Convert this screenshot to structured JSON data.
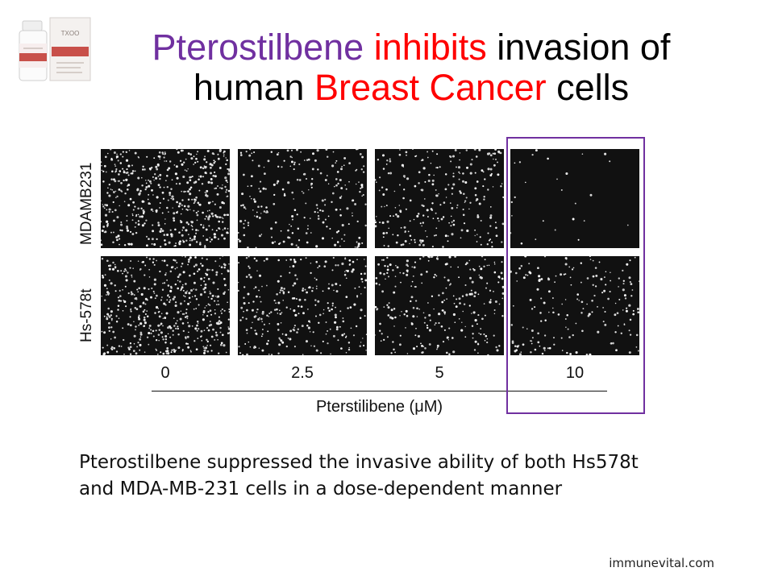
{
  "title": {
    "part1": "Pterostilbene",
    "part2": " inhibits",
    "part3": " invasion of",
    "part4": "human ",
    "part5": "Breast Cancer",
    "part6": " cells"
  },
  "product": {
    "icon": "supplement-bottle-and-box-icon",
    "box_brand": "TXOO"
  },
  "figure": {
    "row_labels": [
      "MDAMB231",
      "Hs-578t"
    ],
    "dose_labels": [
      "0",
      "2.5",
      "5",
      "10"
    ],
    "axis_title": "Pterstilibene (μM)",
    "highlighted_dose": "10",
    "cell_density": {
      "MDAMB231": [
        1.0,
        0.45,
        0.5,
        0.05
      ],
      "Hs-578t": [
        0.95,
        0.55,
        0.5,
        0.35
      ]
    }
  },
  "caption": {
    "line1": "Pterostilbene suppressed the invasive ability of both Hs578t",
    "line2": "and MDA-MB-231 cells in a dose-dependent manner"
  },
  "footer": {
    "site": "immunevital.com"
  },
  "colors": {
    "accent_purple": "#7030a0",
    "accent_red": "#ff0000",
    "panel_background": "#111111",
    "cell_color": "#ffffff"
  }
}
